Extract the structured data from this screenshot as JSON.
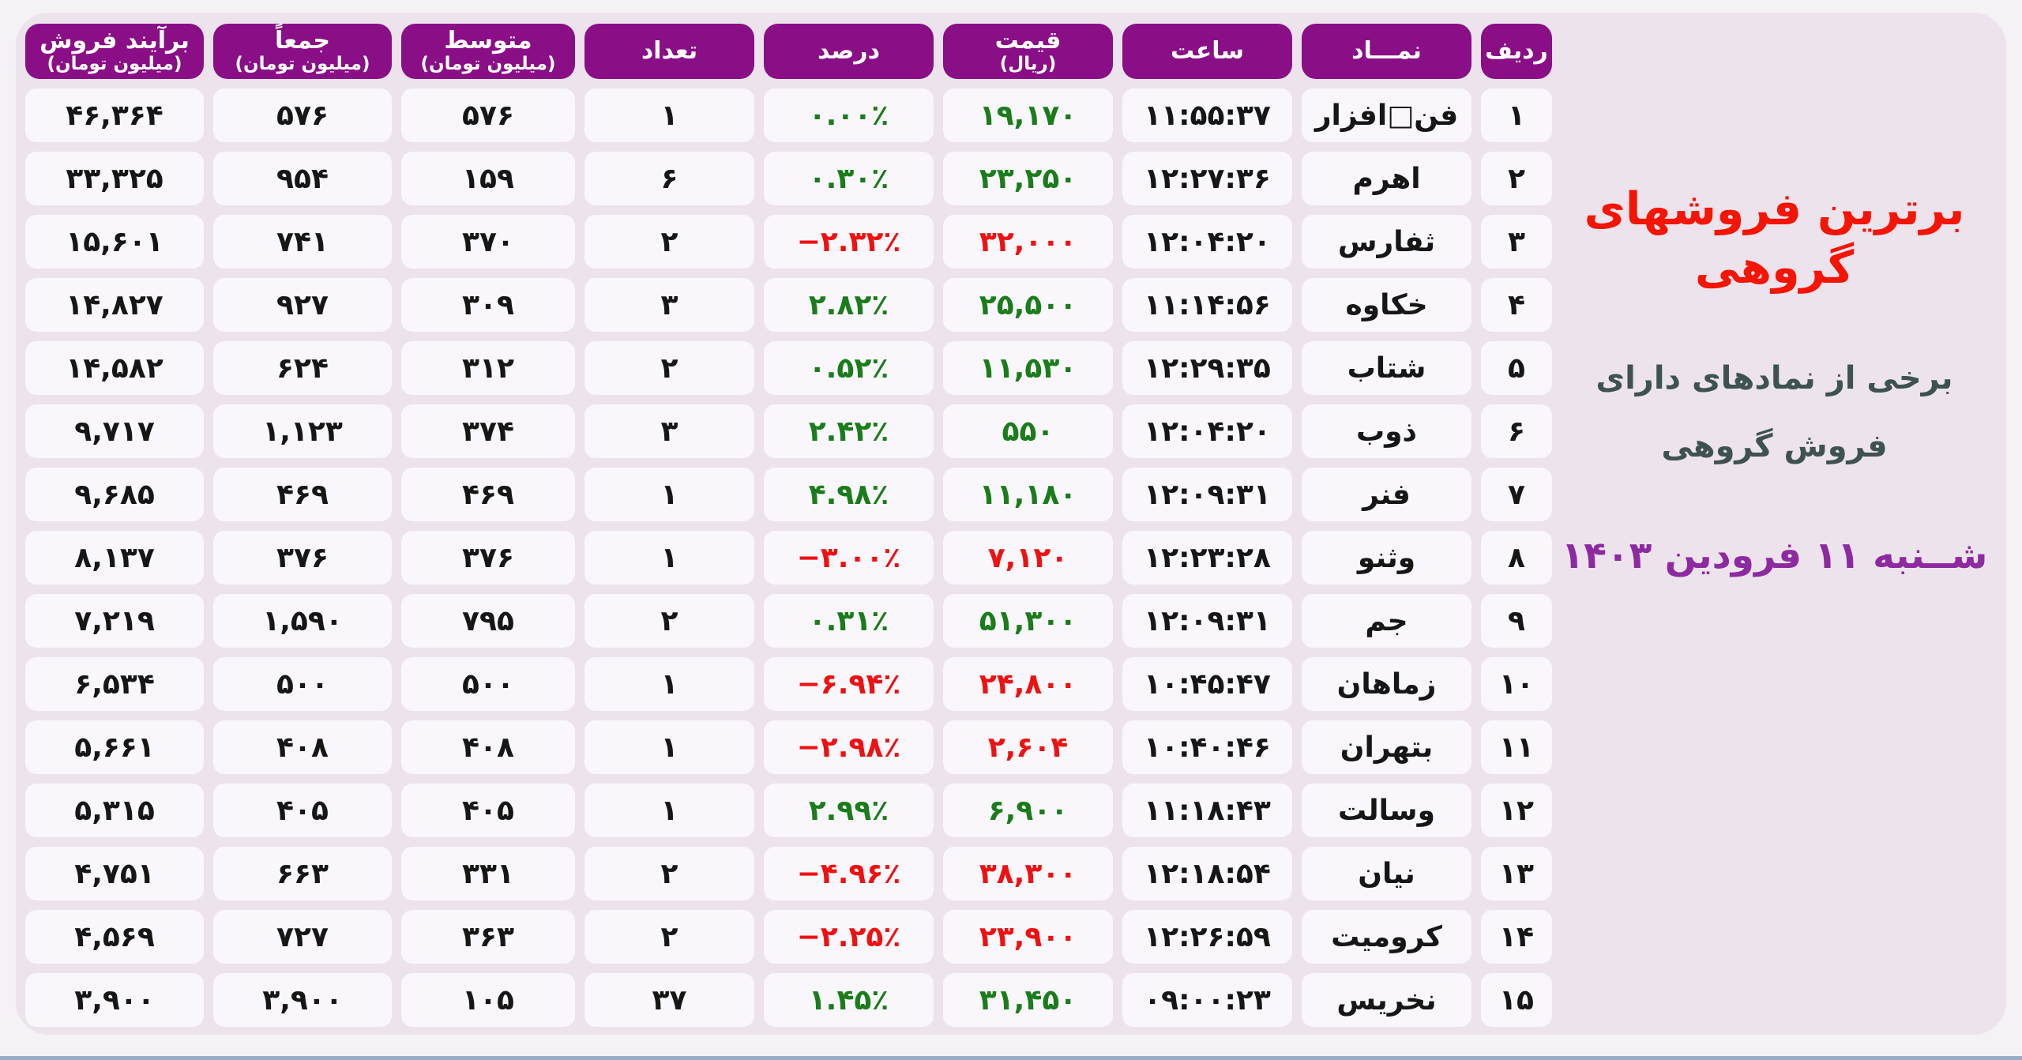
{
  "title_block": {
    "title": "برترین فروشهای گروهی",
    "subtitle_line1": "برخی از نمادهای دارای",
    "subtitle_line2": "فروش گروهی",
    "date": "شــنبه ۱۱ فرودین ۱۴۰۳"
  },
  "colors": {
    "header_bg": "#8a0f87",
    "up": "#1a7c1a",
    "down": "#ee1111",
    "title": "#f51505",
    "subtitle": "#3e5252",
    "date": "#8d2aa0",
    "board_bg": "#ece3ec",
    "cell_bg": "#f9f7fb"
  },
  "chart_data": {
    "type": "table",
    "title": "برترین فروشهای گروهی",
    "direction": "rtl",
    "columns": [
      {
        "key": "radif",
        "label": "ردیف"
      },
      {
        "key": "namad",
        "label": "نمـــاد"
      },
      {
        "key": "saat",
        "label": "ساعت"
      },
      {
        "key": "gheymat",
        "label": "قیمت",
        "sub": "(ریال)"
      },
      {
        "key": "darsad",
        "label": "درصد"
      },
      {
        "key": "tedad",
        "label": "تعداد"
      },
      {
        "key": "motevaset",
        "label": "متوسط",
        "sub": "(میلیون تومان)"
      },
      {
        "key": "jaman",
        "label": "جمعاً",
        "sub": "(میلیون تومان)"
      },
      {
        "key": "baraiand",
        "label": "برآیند فروش",
        "sub": "(میلیون تومان)"
      }
    ],
    "rows": [
      {
        "radif": "۱",
        "namad": "فن□افزار",
        "saat": "۱۱:۵۵:۳۷",
        "gheymat": "۱۹,۱۷۰",
        "darsad": "۰.۰۰٪",
        "trend": "up",
        "tedad": "۱",
        "motevaset": "۵۷۶",
        "jaman": "۵۷۶",
        "baraiand": "۴۶,۳۶۴"
      },
      {
        "radif": "۲",
        "namad": "اهرم",
        "saat": "۱۲:۲۷:۳۶",
        "gheymat": "۲۳,۲۵۰",
        "darsad": "۰.۳۰٪",
        "trend": "up",
        "tedad": "۶",
        "motevaset": "۱۵۹",
        "jaman": "۹۵۴",
        "baraiand": "۳۳,۳۲۵"
      },
      {
        "radif": "۳",
        "namad": "ثفارس",
        "saat": "۱۲:۰۴:۲۰",
        "gheymat": "۳۲,۰۰۰",
        "darsad": "−۲.۳۲٪",
        "trend": "down",
        "tedad": "۲",
        "motevaset": "۳۷۰",
        "jaman": "۷۴۱",
        "baraiand": "۱۵,۶۰۱"
      },
      {
        "radif": "۴",
        "namad": "خکاوه",
        "saat": "۱۱:۱۴:۵۶",
        "gheymat": "۲۵,۵۰۰",
        "darsad": "۲.۸۲٪",
        "trend": "up",
        "tedad": "۳",
        "motevaset": "۳۰۹",
        "jaman": "۹۲۷",
        "baraiand": "۱۴,۸۲۷"
      },
      {
        "radif": "۵",
        "namad": "شتاب",
        "saat": "۱۲:۲۹:۳۵",
        "gheymat": "۱۱,۵۳۰",
        "darsad": "۰.۵۲٪",
        "trend": "up",
        "tedad": "۲",
        "motevaset": "۳۱۲",
        "jaman": "۶۲۴",
        "baraiand": "۱۴,۵۸۲"
      },
      {
        "radif": "۶",
        "namad": "ذوب",
        "saat": "۱۲:۰۴:۲۰",
        "gheymat": "۵۵۰",
        "darsad": "۲.۴۲٪",
        "trend": "up",
        "tedad": "۳",
        "motevaset": "۳۷۴",
        "jaman": "۱,۱۲۳",
        "baraiand": "۹,۷۱۷"
      },
      {
        "radif": "۷",
        "namad": "فنر",
        "saat": "۱۲:۰۹:۳۱",
        "gheymat": "۱۱,۱۸۰",
        "darsad": "۴.۹۸٪",
        "trend": "up",
        "tedad": "۱",
        "motevaset": "۴۶۹",
        "jaman": "۴۶۹",
        "baraiand": "۹,۶۸۵"
      },
      {
        "radif": "۸",
        "namad": "وثنو",
        "saat": "۱۲:۲۳:۲۸",
        "gheymat": "۷,۱۲۰",
        "darsad": "−۳.۰۰٪",
        "trend": "down",
        "tedad": "۱",
        "motevaset": "۳۷۶",
        "jaman": "۳۷۶",
        "baraiand": "۸,۱۳۷"
      },
      {
        "radif": "۹",
        "namad": "جم",
        "saat": "۱۲:۰۹:۳۱",
        "gheymat": "۵۱,۳۰۰",
        "darsad": "۰.۳۱٪",
        "trend": "up",
        "tedad": "۲",
        "motevaset": "۷۹۵",
        "jaman": "۱,۵۹۰",
        "baraiand": "۷,۲۱۹"
      },
      {
        "radif": "۱۰",
        "namad": "زماهان",
        "saat": "۱۰:۴۵:۴۷",
        "gheymat": "۲۴,۸۰۰",
        "darsad": "−۶.۹۴٪",
        "trend": "down",
        "tedad": "۱",
        "motevaset": "۵۰۰",
        "jaman": "۵۰۰",
        "baraiand": "۶,۵۳۴"
      },
      {
        "radif": "۱۱",
        "namad": "بتهران",
        "saat": "۱۰:۴۰:۴۶",
        "gheymat": "۲,۶۰۴",
        "darsad": "−۲.۹۸٪",
        "trend": "down",
        "tedad": "۱",
        "motevaset": "۴۰۸",
        "jaman": "۴۰۸",
        "baraiand": "۵,۶۶۱"
      },
      {
        "radif": "۱۲",
        "namad": "وسالت",
        "saat": "۱۱:۱۸:۴۳",
        "gheymat": "۶,۹۰۰",
        "darsad": "۲.۹۹٪",
        "trend": "up",
        "tedad": "۱",
        "motevaset": "۴۰۵",
        "jaman": "۴۰۵",
        "baraiand": "۵,۳۱۵"
      },
      {
        "radif": "۱۳",
        "namad": "نیان",
        "saat": "۱۲:۱۸:۵۴",
        "gheymat": "۳۸,۳۰۰",
        "darsad": "−۴.۹۶٪",
        "trend": "down",
        "tedad": "۲",
        "motevaset": "۳۳۱",
        "jaman": "۶۶۳",
        "baraiand": "۴,۷۵۱"
      },
      {
        "radif": "۱۴",
        "namad": "کرومیت",
        "saat": "۱۲:۲۶:۵۹",
        "gheymat": "۲۳,۹۰۰",
        "darsad": "−۲.۲۵٪",
        "trend": "down",
        "tedad": "۲",
        "motevaset": "۳۶۳",
        "jaman": "۷۲۷",
        "baraiand": "۴,۵۶۹"
      },
      {
        "radif": "۱۵",
        "namad": "نخریس",
        "saat": "۰۹:۰۰:۲۳",
        "gheymat": "۳۱,۴۵۰",
        "darsad": "۱.۴۵٪",
        "trend": "up",
        "tedad": "۳۷",
        "motevaset": "۱۰۵",
        "jaman": "۳,۹۰۰",
        "baraiand": "۳,۹۰۰"
      }
    ]
  }
}
